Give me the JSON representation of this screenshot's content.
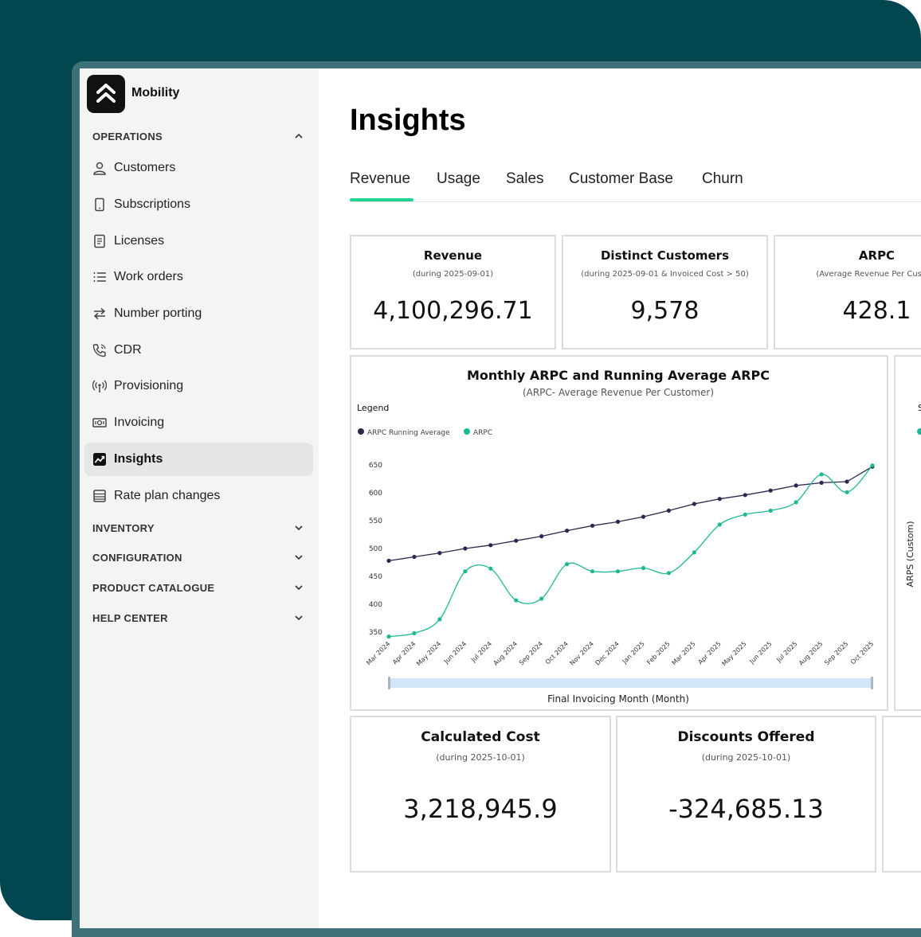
{
  "app": {
    "name": "Mobility"
  },
  "sidebar": {
    "operations_label": "OPERATIONS",
    "items": [
      {
        "label": "Customers",
        "icon": "user-icon"
      },
      {
        "label": "Subscriptions",
        "icon": "phone-icon"
      },
      {
        "label": "Licenses",
        "icon": "document-icon"
      },
      {
        "label": "Work orders",
        "icon": "list-icon"
      },
      {
        "label": "Number porting",
        "icon": "arrows-swap-icon"
      },
      {
        "label": "CDR",
        "icon": "phone-call-icon"
      },
      {
        "label": "Provisioning",
        "icon": "antenna-icon"
      },
      {
        "label": "Invoicing",
        "icon": "money-icon"
      },
      {
        "label": "Insights",
        "icon": "chart-trend-icon",
        "active": true
      },
      {
        "label": "Rate plan changes",
        "icon": "table-icon"
      }
    ],
    "sections": [
      "INVENTORY",
      "CONFIGURATION",
      "PRODUCT CATALOGUE",
      "HELP CENTER"
    ]
  },
  "page": {
    "title": "Insights",
    "tabs": [
      "Revenue",
      "Usage",
      "Sales",
      "Customer Base",
      "Churn"
    ],
    "active_tab": "Revenue"
  },
  "kpis": [
    {
      "title": "Revenue",
      "subtitle": "(during 2025-09-01)",
      "value": "4,100,296.71"
    },
    {
      "title": "Distinct Customers",
      "subtitle": "(during 2025-09-01 & Invoiced Cost > 50)",
      "value": "9,578"
    },
    {
      "title": "ARPC",
      "subtitle": "(Average Revenue Per Custom",
      "value": "428.1"
    },
    {
      "title": "Calculated Cost",
      "subtitle": "(during 2025-10-01)",
      "value": "3,218,945.9"
    },
    {
      "title": "Discounts Offered",
      "subtitle": "(during 2025-10-01)",
      "value": "-324,685.13"
    }
  ],
  "side_chart_fragment": {
    "ylabel": "ARPS (Custom)",
    "legend_letter": "S"
  },
  "chart_data": {
    "type": "line",
    "title": "Monthly ARPC and Running Average ARPC",
    "subtitle": "(ARPC- Average Revenue Per Customer)",
    "legend_title": "Legend",
    "legend_placement": "top-left",
    "xlabel": "Final Invoicing Month (Month)",
    "ylabel": "",
    "ylim": [
      340,
      660
    ],
    "yticks": [
      350,
      400,
      450,
      500,
      550,
      600,
      650
    ],
    "grid": false,
    "categories": [
      "Mar 2024",
      "Apr 2024",
      "May 2024",
      "Jun 2024",
      "Jul 2024",
      "Aug 2024",
      "Sep 2024",
      "Oct 2024",
      "Nov 2024",
      "Dec 2024",
      "Jan 2025",
      "Feb 2025",
      "Mar 2025",
      "Apr 2025",
      "May 2025",
      "Jun 2025",
      "Jul 2025",
      "Aug 2025",
      "Sep 2025",
      "Oct 2025"
    ],
    "series": [
      {
        "name": "ARPC Running Average",
        "color": "#2b2a4c",
        "values": [
          478,
          485,
          492,
          500,
          506,
          514,
          522,
          532,
          541,
          548,
          557,
          568,
          580,
          589,
          596,
          604,
          613,
          618,
          620,
          647
        ]
      },
      {
        "name": "ARPC",
        "color": "#1fb894",
        "values": [
          342,
          348,
          373,
          459,
          464,
          407,
          410,
          472,
          459,
          459,
          465,
          456,
          493,
          543,
          561,
          568,
          583,
          633,
          601,
          649
        ]
      }
    ]
  }
}
